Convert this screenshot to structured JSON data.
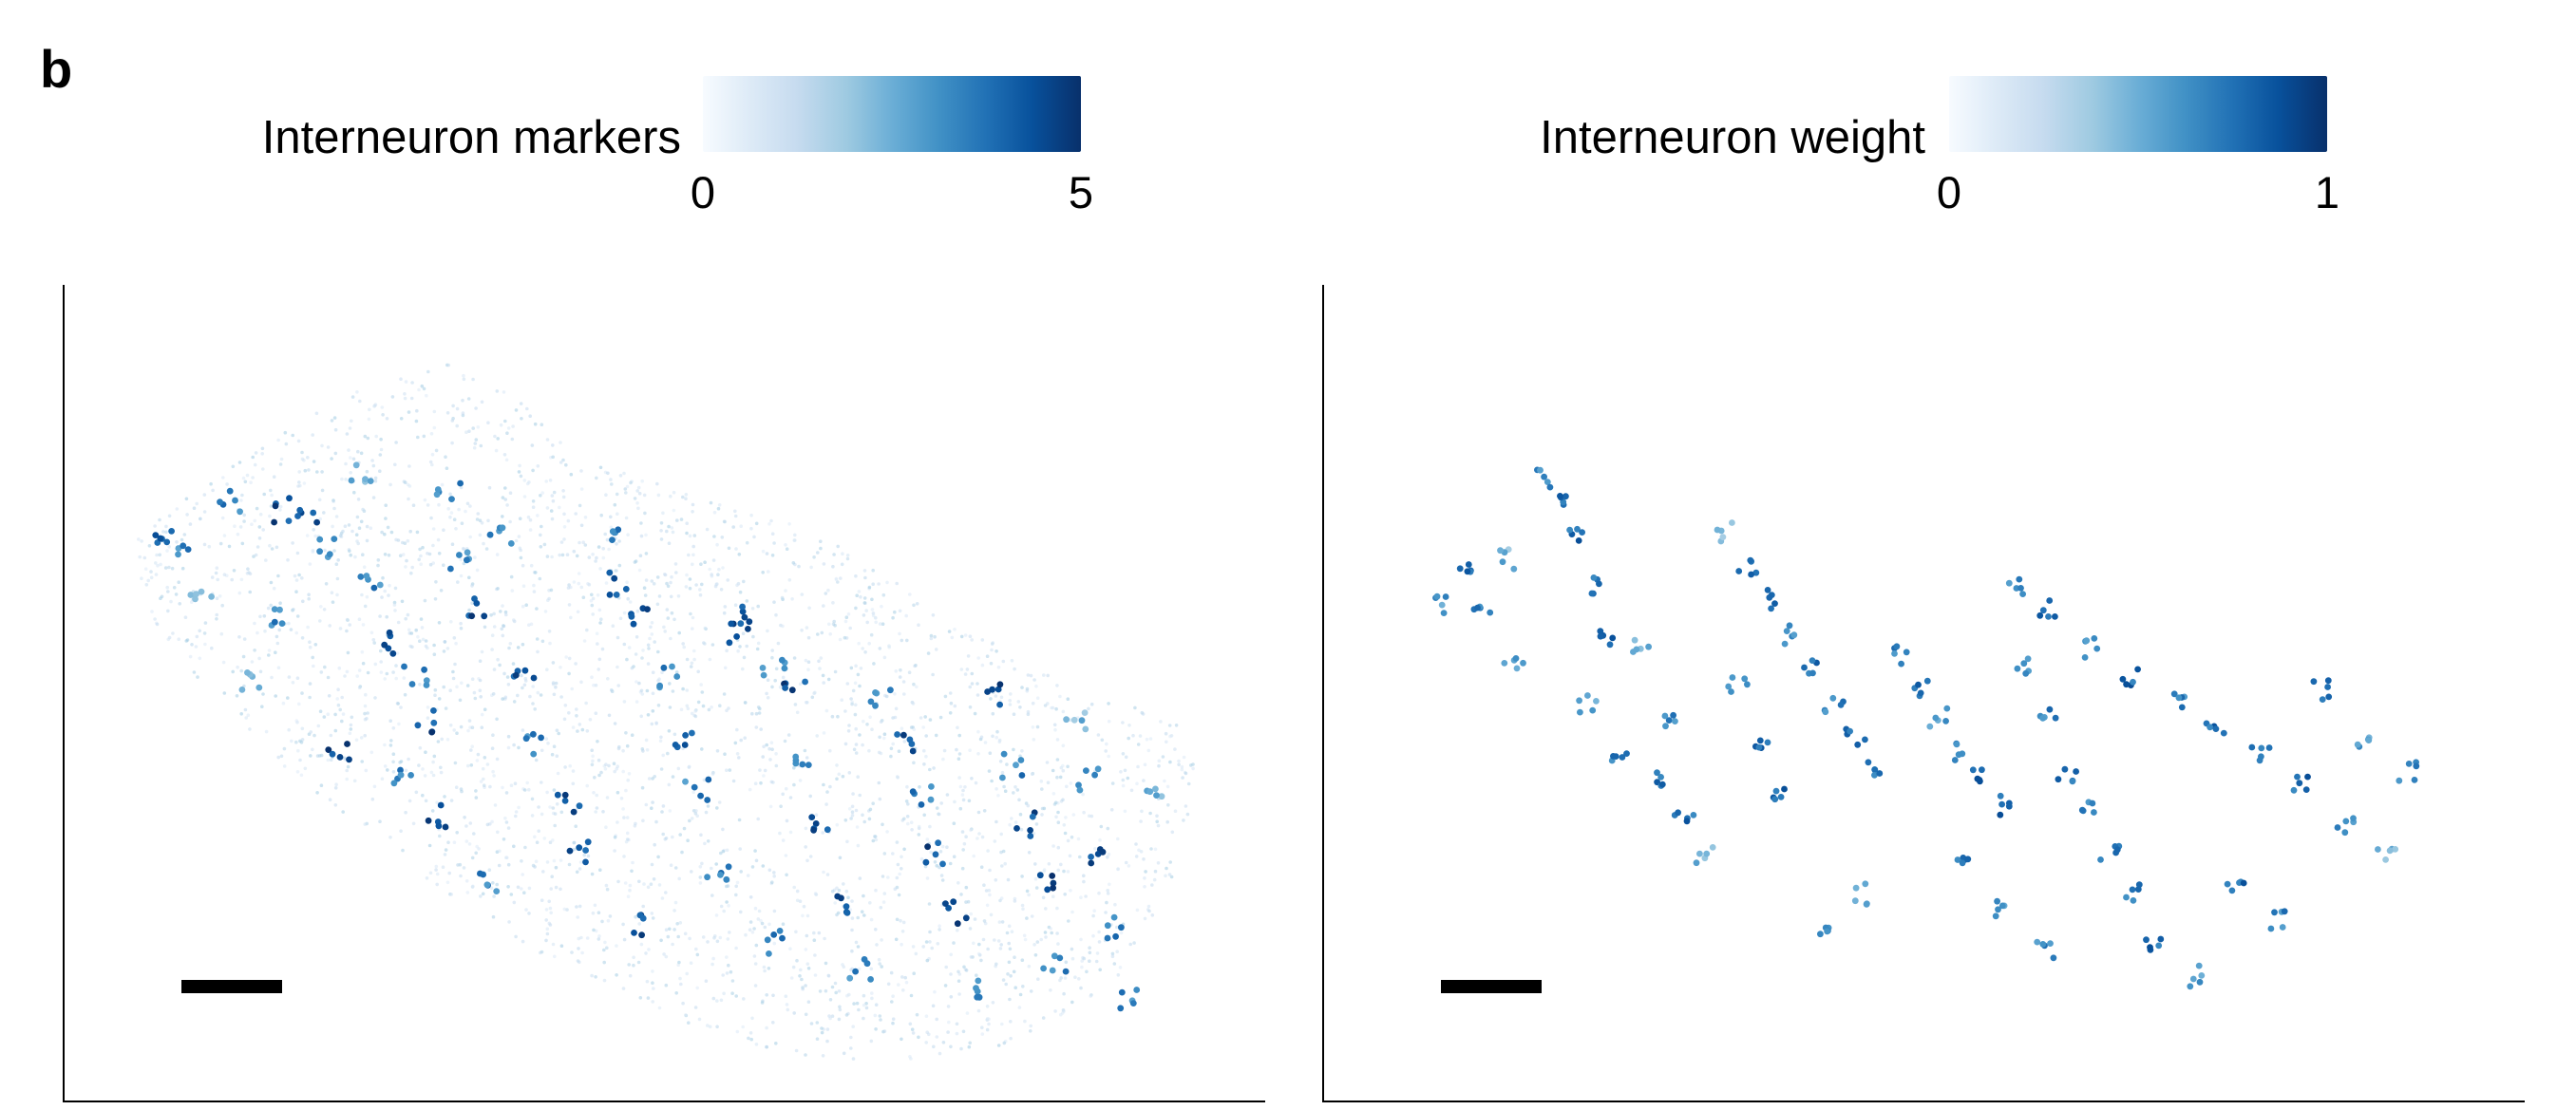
{
  "panel_label": "b",
  "colormap": {
    "name": "Blues",
    "low": "#f7fbff",
    "high": "#08306b"
  },
  "chart_data": [
    {
      "type": "scatter",
      "colorbar": {
        "label": "Interneuron markers",
        "min_label": "0",
        "max_label": "5",
        "range": [
          0,
          5
        ]
      },
      "background_cells": "dense light-blue spatial transcriptomics spots forming tissue section",
      "highlight_points": [
        [
          0.04,
          0.26,
          5
        ],
        [
          0.05,
          0.29,
          4
        ],
        [
          0.07,
          0.34,
          3
        ],
        [
          0.1,
          0.22,
          4
        ],
        [
          0.14,
          0.38,
          4
        ],
        [
          0.15,
          0.23,
          5
        ],
        [
          0.17,
          0.24,
          5
        ],
        [
          0.19,
          0.28,
          4
        ],
        [
          0.22,
          0.18,
          3
        ],
        [
          0.23,
          0.33,
          4
        ],
        [
          0.25,
          0.41,
          5
        ],
        [
          0.27,
          0.46,
          4
        ],
        [
          0.28,
          0.52,
          5
        ],
        [
          0.26,
          0.59,
          4
        ],
        [
          0.29,
          0.65,
          5
        ],
        [
          0.31,
          0.3,
          4
        ],
        [
          0.33,
          0.36,
          5
        ],
        [
          0.35,
          0.26,
          4
        ],
        [
          0.37,
          0.45,
          5
        ],
        [
          0.38,
          0.55,
          4
        ],
        [
          0.41,
          0.63,
          5
        ],
        [
          0.42,
          0.7,
          5
        ],
        [
          0.45,
          0.27,
          4
        ],
        [
          0.46,
          0.33,
          5
        ],
        [
          0.48,
          0.38,
          5
        ],
        [
          0.5,
          0.46,
          4
        ],
        [
          0.52,
          0.54,
          5
        ],
        [
          0.53,
          0.61,
          4
        ],
        [
          0.55,
          0.73,
          4
        ],
        [
          0.57,
          0.4,
          5
        ],
        [
          0.58,
          0.37,
          5
        ],
        [
          0.6,
          0.45,
          4
        ],
        [
          0.62,
          0.48,
          5
        ],
        [
          0.63,
          0.58,
          4
        ],
        [
          0.64,
          0.66,
          5
        ],
        [
          0.66,
          0.77,
          5
        ],
        [
          0.68,
          0.86,
          4
        ],
        [
          0.7,
          0.49,
          4
        ],
        [
          0.72,
          0.55,
          5
        ],
        [
          0.74,
          0.62,
          4
        ],
        [
          0.75,
          0.7,
          5
        ],
        [
          0.77,
          0.78,
          5
        ],
        [
          0.78,
          0.88,
          4
        ],
        [
          0.8,
          0.48,
          5
        ],
        [
          0.82,
          0.58,
          4
        ],
        [
          0.83,
          0.66,
          5
        ],
        [
          0.85,
          0.74,
          5
        ],
        [
          0.86,
          0.85,
          4
        ],
        [
          0.88,
          0.52,
          3
        ],
        [
          0.89,
          0.6,
          4
        ],
        [
          0.9,
          0.7,
          5
        ],
        [
          0.91,
          0.8,
          4
        ],
        [
          0.93,
          0.9,
          4
        ],
        [
          0.95,
          0.62,
          3
        ],
        [
          0.2,
          0.56,
          5
        ],
        [
          0.34,
          0.74,
          4
        ],
        [
          0.47,
          0.8,
          5
        ],
        [
          0.6,
          0.82,
          4
        ],
        [
          0.12,
          0.46,
          3
        ],
        [
          0.3,
          0.2,
          4
        ]
      ]
    },
    {
      "type": "scatter",
      "colorbar": {
        "label": "Interneuron weight",
        "min_label": "0",
        "max_label": "1",
        "range": [
          0,
          1
        ]
      },
      "highlight_points": [
        [
          0.07,
          0.31,
          0.9
        ],
        [
          0.09,
          0.37,
          0.8
        ],
        [
          0.12,
          0.44,
          0.7
        ],
        [
          0.11,
          0.29,
          0.6
        ],
        [
          0.15,
          0.17,
          0.8
        ],
        [
          0.16,
          0.21,
          0.9
        ],
        [
          0.18,
          0.26,
          0.9
        ],
        [
          0.2,
          0.33,
          0.8
        ],
        [
          0.21,
          0.4,
          0.9
        ],
        [
          0.19,
          0.5,
          0.7
        ],
        [
          0.22,
          0.57,
          0.8
        ],
        [
          0.25,
          0.61,
          0.9
        ],
        [
          0.28,
          0.66,
          0.9
        ],
        [
          0.27,
          0.52,
          0.8
        ],
        [
          0.32,
          0.25,
          0.5
        ],
        [
          0.34,
          0.3,
          0.9
        ],
        [
          0.36,
          0.35,
          0.9
        ],
        [
          0.38,
          0.4,
          0.8
        ],
        [
          0.4,
          0.45,
          0.9
        ],
        [
          0.42,
          0.5,
          0.8
        ],
        [
          0.44,
          0.55,
          0.9
        ],
        [
          0.46,
          0.6,
          0.8
        ],
        [
          0.33,
          0.47,
          0.7
        ],
        [
          0.35,
          0.56,
          0.9
        ],
        [
          0.37,
          0.64,
          0.9
        ],
        [
          0.3,
          0.72,
          0.6
        ],
        [
          0.48,
          0.43,
          0.8
        ],
        [
          0.5,
          0.48,
          0.9
        ],
        [
          0.52,
          0.52,
          0.7
        ],
        [
          0.54,
          0.57,
          0.8
        ],
        [
          0.56,
          0.61,
          0.9
        ],
        [
          0.58,
          0.65,
          0.9
        ],
        [
          0.6,
          0.45,
          0.7
        ],
        [
          0.62,
          0.52,
          0.8
        ],
        [
          0.64,
          0.6,
          0.9
        ],
        [
          0.66,
          0.66,
          0.8
        ],
        [
          0.68,
          0.72,
          0.9
        ],
        [
          0.7,
          0.78,
          0.8
        ],
        [
          0.59,
          0.33,
          0.8
        ],
        [
          0.62,
          0.36,
          0.9
        ],
        [
          0.66,
          0.42,
          0.8
        ],
        [
          0.7,
          0.46,
          0.9
        ],
        [
          0.74,
          0.5,
          0.8
        ],
        [
          0.78,
          0.54,
          0.9
        ],
        [
          0.82,
          0.58,
          0.8
        ],
        [
          0.86,
          0.62,
          0.9
        ],
        [
          0.9,
          0.68,
          0.8
        ],
        [
          0.94,
          0.72,
          0.6
        ],
        [
          0.88,
          0.48,
          0.9
        ],
        [
          0.92,
          0.55,
          0.7
        ],
        [
          0.96,
          0.6,
          0.8
        ],
        [
          0.54,
          0.73,
          0.9
        ],
        [
          0.58,
          0.8,
          0.7
        ],
        [
          0.62,
          0.86,
          0.8
        ],
        [
          0.72,
          0.86,
          0.9
        ],
        [
          0.76,
          0.9,
          0.7
        ],
        [
          0.8,
          0.76,
          0.9
        ],
        [
          0.84,
          0.82,
          0.8
        ],
        [
          0.45,
          0.78,
          0.7
        ],
        [
          0.41,
          0.84,
          0.8
        ],
        [
          0.24,
          0.42,
          0.6
        ],
        [
          0.05,
          0.36,
          0.7
        ]
      ]
    }
  ]
}
